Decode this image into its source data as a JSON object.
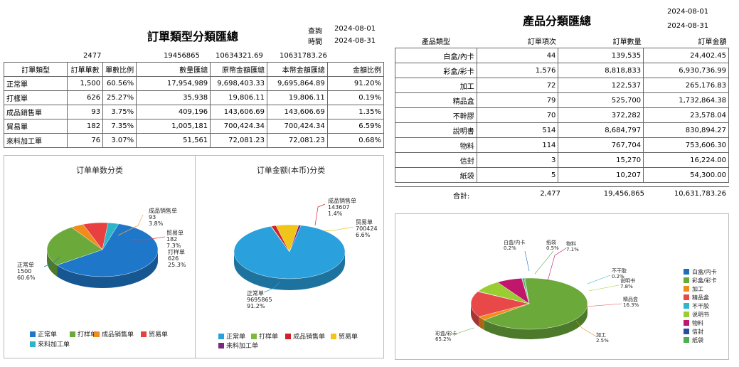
{
  "left": {
    "title": "訂單類型分類匯總",
    "query_label": "查詢",
    "time_label": "時間",
    "date_from": "2024-08-01",
    "date_to": "2024-08-31",
    "totals": [
      "2477",
      "19456865",
      "10634321.69",
      "10631783.26"
    ],
    "headers": [
      "訂單類型",
      "訂單單數",
      "單數比例",
      "數量匯總",
      "原幣金額匯總",
      "本幣金額匯總",
      "金額比例"
    ],
    "rows": [
      [
        "正常單",
        "1,500",
        "60.56%",
        "17,954,989",
        "9,698,403.33",
        "9,695,864.89",
        "91.20%"
      ],
      [
        "打樣單",
        "626",
        "25.27%",
        "35,938",
        "19,806.11",
        "19,806.11",
        "0.19%"
      ],
      [
        "成品銷售單",
        "93",
        "3.75%",
        "409,196",
        "143,606.69",
        "143,606.69",
        "1.35%"
      ],
      [
        "貿易單",
        "182",
        "7.35%",
        "1,005,181",
        "700,424.34",
        "700,424.34",
        "6.59%"
      ],
      [
        "來料加工單",
        "76",
        "3.07%",
        "51,561",
        "72,081.23",
        "72,081.23",
        "0.68%"
      ]
    ]
  },
  "right": {
    "title": "產品分類匯總",
    "date_from": "2024-08-01",
    "date_to": "2024-08-31",
    "headers": [
      "產品類型",
      "訂單項次",
      "訂單數量",
      "訂單金額"
    ],
    "rows": [
      [
        "白盒/內卡",
        "44",
        "139,535",
        "24,402.45"
      ],
      [
        "彩盒/彩卡",
        "1,576",
        "8,818,833",
        "6,930,736.99"
      ],
      [
        "加工",
        "72",
        "122,537",
        "265,176.83"
      ],
      [
        "精品盒",
        "79",
        "525,700",
        "1,732,864.38"
      ],
      [
        "不幹膠",
        "70",
        "372,282",
        "23,578.04"
      ],
      [
        "說明書",
        "514",
        "8,684,797",
        "830,894.27"
      ],
      [
        "物料",
        "114",
        "767,704",
        "753,606.30"
      ],
      [
        "信封",
        "3",
        "15,270",
        "16,224.00"
      ],
      [
        "紙袋",
        "5",
        "10,207",
        "54,300.00"
      ]
    ],
    "total_label": "合計:",
    "total_row": [
      "2,477",
      "19,456,865",
      "10,631,783.26"
    ]
  },
  "chart_data": [
    {
      "type": "pie",
      "title": "订单单数分类",
      "categories": [
        "正常单",
        "打样单",
        "成品销售单",
        "贸易单",
        "来料加工单"
      ],
      "values": [
        1500,
        626,
        93,
        182,
        76
      ],
      "percent_labels": [
        "60.6%",
        "25.3%",
        "3.8%",
        "7.3%",
        "3.1%"
      ],
      "colors": [
        "#1f77c9",
        "#6aa93a",
        "#f08c1c",
        "#e84040",
        "#2db4c8"
      ],
      "labels_shown": [
        {
          "name": "正常单",
          "value": "1500",
          "pct": "60.6%"
        },
        {
          "name": "打样单",
          "value": "626",
          "pct": "25.3%"
        },
        {
          "name": "成品销售单",
          "value": "93",
          "pct": "3.8%"
        },
        {
          "name": "贸易单",
          "value": "182",
          "pct": "7.3%"
        }
      ],
      "legend": "bottom"
    },
    {
      "type": "pie",
      "title": "订单金额(本币)分类",
      "categories": [
        "正常单",
        "打样单",
        "成品销售单",
        "贸易单",
        "来料加工单"
      ],
      "values": [
        9695865,
        19806,
        143607,
        700424,
        72081
      ],
      "colors": [
        "#2aa0dc",
        "#7cbb3a",
        "#d0202a",
        "#f0c419",
        "#7a2a7a"
      ],
      "labels_shown": [
        {
          "name": "正常单",
          "value": "9695865",
          "pct": "91.2%"
        },
        {
          "name": "成品销售单",
          "value": "143607",
          "pct": "1.4%"
        },
        {
          "name": "贸易单",
          "value": "700424",
          "pct": "6.6%"
        }
      ],
      "legend": "bottom"
    },
    {
      "type": "pie",
      "title": "",
      "categories": [
        "白盒/内卡",
        "彩盒/彩卡",
        "加工",
        "精品盒",
        "不干胶",
        "说明书",
        "物料",
        "信封",
        "纸袋"
      ],
      "values": [
        24402,
        6930737,
        265177,
        1732864,
        23578,
        830894,
        753606,
        16224,
        54300
      ],
      "colors": [
        "#1f6fb8",
        "#6aa93a",
        "#f08c1c",
        "#e84848",
        "#2eb6c6",
        "#9acd32",
        "#c0166c",
        "#2a4f9a",
        "#4caf50"
      ],
      "labels_shown": [
        {
          "name": "白盒/内卡",
          "pct": "0.2%"
        },
        {
          "name": "纸袋",
          "pct": "0.5%"
        },
        {
          "name": "物料",
          "pct": "7.1%"
        },
        {
          "name": "不干胶",
          "pct": "0.2%"
        },
        {
          "name": "说明书",
          "pct": "7.8%"
        },
        {
          "name": "精品盒",
          "pct": "16.3%"
        },
        {
          "name": "加工",
          "pct": "2.5%"
        },
        {
          "name": "彩盒/彩卡",
          "pct": "65.2%"
        }
      ],
      "legend": "right"
    }
  ]
}
